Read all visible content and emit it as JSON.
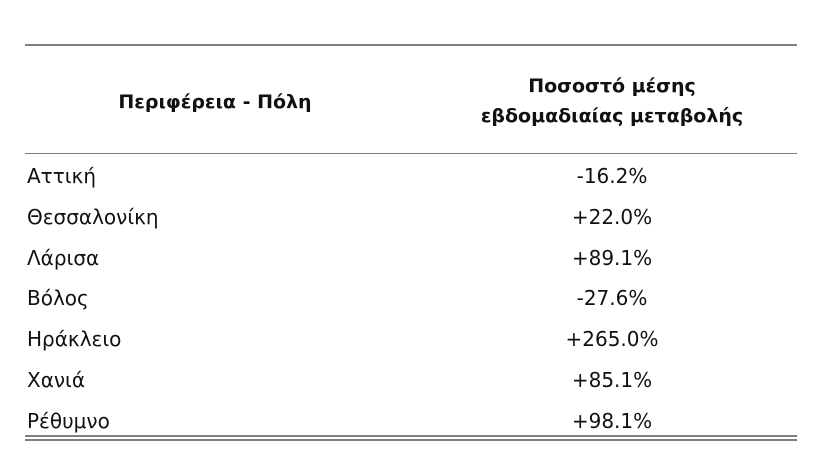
{
  "table": {
    "header": [
      "Περιφέρεια - Πόλη",
      [
        "Ποσοστό μέσης",
        "εβδομαδιαίας μεταβολής"
      ]
    ],
    "rows": [
      [
        "Αττική",
        "-16.2%"
      ],
      [
        "Θεσσαλονίκη",
        "+22.0%"
      ],
      [
        "Λάρισα",
        "+89.1%"
      ],
      [
        "Βόλος",
        "-27.6%"
      ],
      [
        "Ηράκλειο",
        "+265.0%"
      ],
      [
        "Χανιά",
        "+85.1%"
      ],
      [
        "Ρέθυμνο",
        "+98.1%"
      ]
    ]
  }
}
